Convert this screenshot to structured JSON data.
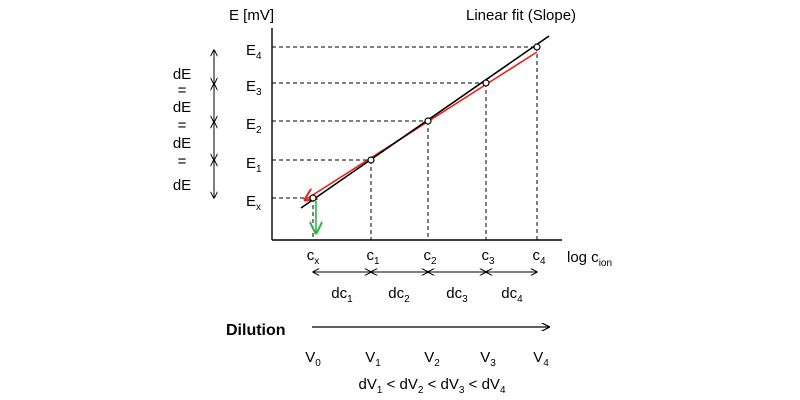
{
  "axis": {
    "y_label": "E [mV]",
    "x_label_main": "log c",
    "x_label_sub": "ion"
  },
  "fit_label": "Linear fit (Slope)",
  "levels": [
    {
      "main": "E",
      "sub": "4"
    },
    {
      "main": "E",
      "sub": "3"
    },
    {
      "main": "E",
      "sub": "2"
    },
    {
      "main": "E",
      "sub": "1"
    },
    {
      "main": "E",
      "sub": "x"
    }
  ],
  "concentrations": [
    {
      "main": "c",
      "sub": "x"
    },
    {
      "main": "c",
      "sub": "1"
    },
    {
      "main": "c",
      "sub": "2"
    },
    {
      "main": "c",
      "sub": "3"
    },
    {
      "main": "c",
      "sub": "4"
    }
  ],
  "concentration_steps": [
    {
      "main": "dc",
      "sub": "1"
    },
    {
      "main": "dc",
      "sub": "2"
    },
    {
      "main": "dc",
      "sub": "3"
    },
    {
      "main": "dc",
      "sub": "4"
    }
  ],
  "de_stack": [
    "dE",
    "=",
    "dE",
    "=",
    "dE",
    "=",
    "dE"
  ],
  "dilution_label": "Dilution",
  "volumes": [
    {
      "main": "V",
      "sub": "0"
    },
    {
      "main": "V",
      "sub": "1"
    },
    {
      "main": "V",
      "sub": "2"
    },
    {
      "main": "V",
      "sub": "3"
    },
    {
      "main": "V",
      "sub": "4"
    }
  ],
  "inequality": [
    {
      "main": "dV",
      "sub": "1"
    },
    {
      "main": "<",
      "sub": ""
    },
    {
      "main": "dV",
      "sub": "2"
    },
    {
      "main": "<",
      "sub": ""
    },
    {
      "main": "dV",
      "sub": "3"
    },
    {
      "main": "<",
      "sub": ""
    },
    {
      "main": "dV",
      "sub": "4"
    }
  ],
  "colors": {
    "fit_line": "#000000",
    "measured_line": "#e8231d",
    "projection_arrow": "#2fb34a"
  }
}
